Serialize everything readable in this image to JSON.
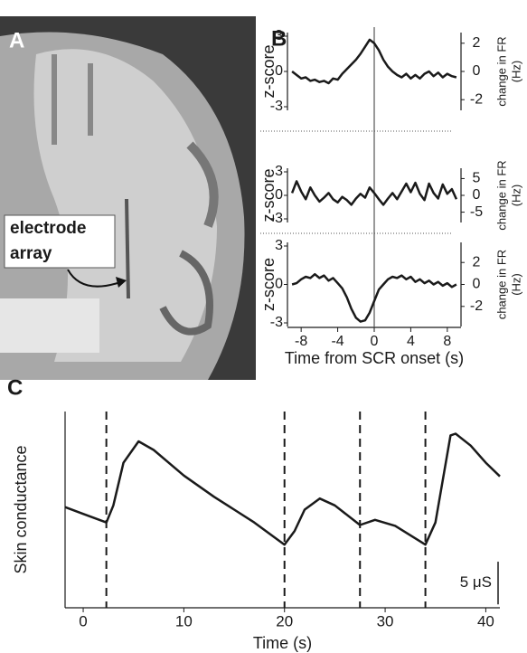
{
  "panel_a": {
    "label": "A",
    "annotation": [
      "electrode",
      "array"
    ]
  },
  "chart_data": [
    {
      "type": "line",
      "panel_label": "B",
      "ylabel": "z-score",
      "y2label": [
        "change in FR",
        "(Hz)"
      ],
      "x": [
        -9,
        -8.5,
        -8,
        -7.5,
        -7,
        -6.5,
        -6,
        -5.5,
        -5,
        -4.5,
        -4,
        -3.5,
        -3,
        -2.5,
        -2,
        -1.5,
        -1,
        -0.5,
        0,
        0.5,
        1,
        1.5,
        2,
        2.5,
        3,
        3.5,
        4,
        4.5,
        5,
        5.5,
        6,
        6.5,
        7,
        7.5,
        8,
        8.5,
        9
      ],
      "values": [
        0,
        -0.3,
        -0.6,
        -0.5,
        -0.8,
        -0.7,
        -0.9,
        -0.8,
        -1.0,
        -0.6,
        -0.7,
        -0.2,
        0.2,
        0.6,
        1.0,
        1.5,
        2.1,
        2.7,
        2.4,
        1.8,
        1.0,
        0.4,
        0,
        -0.3,
        -0.5,
        -0.2,
        -0.6,
        -0.3,
        -0.6,
        -0.2,
        0,
        -0.4,
        -0.1,
        -0.5,
        -0.2,
        -0.4,
        -0.5
      ],
      "color": "#1a1a1a",
      "xlim": [
        -9.5,
        9.5
      ],
      "ylim": [
        -3,
        3
      ],
      "yticks": [
        -3,
        0,
        3
      ],
      "y2lim": [
        -2.5,
        2.5
      ],
      "y2ticks": [
        -2,
        0,
        2
      ],
      "vlines": [
        0
      ]
    },
    {
      "type": "line",
      "ylabel": "z-score",
      "y2label": [
        "change in FR",
        "(Hz)"
      ],
      "x": [
        -9,
        -8.5,
        -8,
        -7.5,
        -7,
        -6.5,
        -6,
        -5.5,
        -5,
        -4.5,
        -4,
        -3.5,
        -3,
        -2.5,
        -2,
        -1.5,
        -1,
        -0.5,
        0,
        0.5,
        1,
        1.5,
        2,
        2.5,
        3,
        3.5,
        4,
        4.5,
        5,
        5.5,
        6,
        6.5,
        7,
        7.5,
        8,
        8.5,
        9
      ],
      "values": [
        0.3,
        1.8,
        0.5,
        -0.5,
        1.0,
        0,
        -0.8,
        -0.3,
        0.3,
        -0.5,
        -0.9,
        -0.2,
        -0.6,
        -1.2,
        -0.4,
        0.2,
        -0.3,
        1.0,
        0.3,
        -0.5,
        -1.2,
        -0.4,
        0.3,
        -0.5,
        0.5,
        1.5,
        0.4,
        1.6,
        0.2,
        -0.6,
        1.5,
        0.3,
        -0.4,
        1.4,
        0.2,
        0.8,
        -0.5
      ],
      "color": "#1a1a1a",
      "xlim": [
        -9.5,
        9.5
      ],
      "ylim": [
        -3,
        3
      ],
      "yticks": [
        -3,
        0,
        3
      ],
      "y2lim": [
        -7,
        7
      ],
      "y2ticks": [
        -5,
        0,
        5
      ],
      "vlines": [
        0
      ]
    },
    {
      "type": "line",
      "ylabel": "z-score",
      "y2label": [
        "change in FR",
        "(Hz)"
      ],
      "xlabel": "Time from SCR onset (s)",
      "x": [
        -9,
        -8.5,
        -8,
        -7.5,
        -7,
        -6.5,
        -6,
        -5.5,
        -5,
        -4.5,
        -4,
        -3.5,
        -3,
        -2.5,
        -2,
        -1.5,
        -1,
        -0.5,
        0,
        0.5,
        1,
        1.5,
        2,
        2.5,
        3,
        3.5,
        4,
        4.5,
        5,
        5.5,
        6,
        6.5,
        7,
        7.5,
        8,
        8.5,
        9
      ],
      "values": [
        0,
        0.1,
        0.4,
        0.6,
        0.5,
        0.8,
        0.5,
        0.7,
        0.3,
        0.5,
        0.1,
        -0.3,
        -1.0,
        -1.9,
        -2.6,
        -2.9,
        -2.8,
        -2.2,
        -1.3,
        -0.4,
        0,
        0.4,
        0.6,
        0.5,
        0.7,
        0.4,
        0.6,
        0.2,
        0.4,
        0.1,
        0.3,
        0,
        0.2,
        -0.1,
        0.1,
        -0.2,
        0
      ],
      "color": "#1a1a1a",
      "xlim": [
        -9.5,
        9.5
      ],
      "xticks": [
        -8,
        -4,
        0,
        4,
        8
      ],
      "ylim": [
        -3,
        3
      ],
      "yticks": [
        -3,
        0,
        3
      ],
      "y2lim": [
        -3.5,
        3.5
      ],
      "y2ticks": [
        -2,
        0,
        2
      ],
      "vlines": [
        0
      ]
    },
    {
      "type": "line",
      "panel_label": "C",
      "ylabel": "Skin conductance",
      "xlabel": "Time (s)",
      "x": [
        -1.8,
        0,
        2.3,
        3,
        4,
        5.5,
        7,
        10,
        13,
        15,
        17,
        20,
        21,
        22,
        23.5,
        25,
        27.5,
        29,
        31,
        34,
        35,
        36.5,
        37,
        38.5,
        40,
        41.4
      ],
      "values": [
        11.8,
        11.0,
        10.0,
        12.0,
        17.0,
        19.5,
        18.5,
        15.5,
        13.0,
        11.5,
        10.0,
        7.4,
        9.0,
        11.5,
        12.8,
        12.0,
        9.7,
        10.3,
        9.6,
        7.4,
        10.0,
        20.2,
        20.4,
        19.0,
        17.0,
        15.4
      ],
      "color": "#1a1a1a",
      "xlim": [
        -1.8,
        41.4
      ],
      "xticks": [
        0,
        10,
        20,
        30,
        40
      ],
      "ylim": [
        0,
        23
      ],
      "vlines": [
        2.3,
        20,
        27.5,
        34
      ],
      "scale_bar": {
        "value": 5,
        "label": "5 μS"
      }
    }
  ]
}
